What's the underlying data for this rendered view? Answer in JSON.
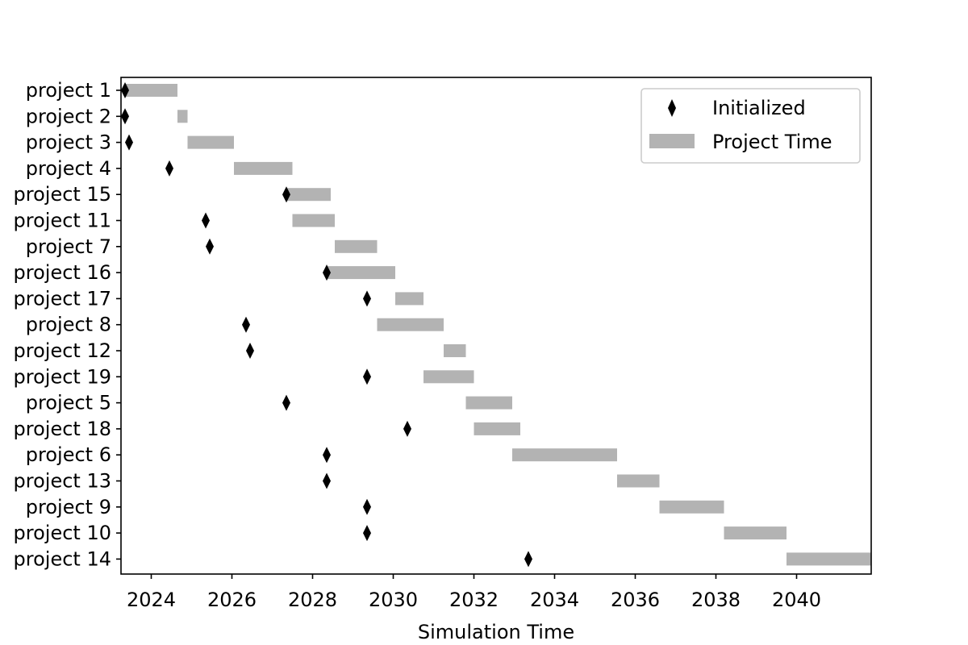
{
  "chart_data": {
    "type": "gantt",
    "xlabel": "Simulation Time",
    "ylabel": "",
    "xlim": [
      2023.25,
      2041.85
    ],
    "x_ticks": [
      2024,
      2026,
      2028,
      2030,
      2032,
      2034,
      2036,
      2038,
      2040
    ],
    "grid": false,
    "legend_position": "top-right",
    "legend": [
      {
        "label": "Initialized",
        "marker": "thin_diamond",
        "color": "#000000"
      },
      {
        "label": "Project Time",
        "marker": "bar",
        "color": "#b3b3b3"
      }
    ],
    "projects": [
      {
        "name": "project 1",
        "initialized": 2023.35,
        "start": 2023.35,
        "end": 2024.65
      },
      {
        "name": "project 2",
        "initialized": 2023.35,
        "start": 2024.65,
        "end": 2024.9
      },
      {
        "name": "project 3",
        "initialized": 2023.45,
        "start": 2024.9,
        "end": 2026.05
      },
      {
        "name": "project 4",
        "initialized": 2024.45,
        "start": 2026.05,
        "end": 2027.5
      },
      {
        "name": "project 15",
        "initialized": 2027.35,
        "start": 2027.35,
        "end": 2028.45
      },
      {
        "name": "project 11",
        "initialized": 2025.35,
        "start": 2027.5,
        "end": 2028.55
      },
      {
        "name": "project 7",
        "initialized": 2025.45,
        "start": 2028.55,
        "end": 2029.6
      },
      {
        "name": "project 16",
        "initialized": 2028.35,
        "start": 2028.35,
        "end": 2030.05
      },
      {
        "name": "project 17",
        "initialized": 2029.35,
        "start": 2030.05,
        "end": 2030.75
      },
      {
        "name": "project 8",
        "initialized": 2026.35,
        "start": 2029.6,
        "end": 2031.25
      },
      {
        "name": "project 12",
        "initialized": 2026.45,
        "start": 2031.25,
        "end": 2031.8
      },
      {
        "name": "project 19",
        "initialized": 2029.35,
        "start": 2030.75,
        "end": 2032.0
      },
      {
        "name": "project 5",
        "initialized": 2027.35,
        "start": 2031.8,
        "end": 2032.95
      },
      {
        "name": "project 18",
        "initialized": 2030.35,
        "start": 2032.0,
        "end": 2033.15
      },
      {
        "name": "project 6",
        "initialized": 2028.35,
        "start": 2032.95,
        "end": 2035.55
      },
      {
        "name": "project 13",
        "initialized": 2028.35,
        "start": 2035.55,
        "end": 2036.6
      },
      {
        "name": "project 9",
        "initialized": 2029.35,
        "start": 2036.6,
        "end": 2038.2
      },
      {
        "name": "project 10",
        "initialized": 2029.35,
        "start": 2038.2,
        "end": 2039.75
      },
      {
        "name": "project 14",
        "initialized": 2033.35,
        "start": 2039.75,
        "end": 2041.85
      }
    ]
  }
}
